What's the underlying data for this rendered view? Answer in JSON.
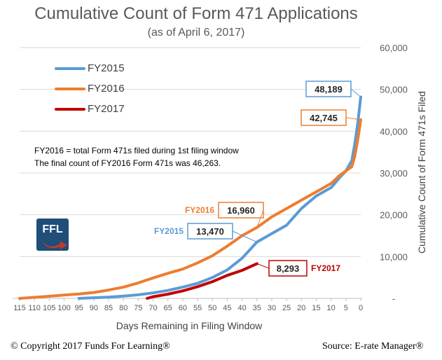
{
  "title": "Cumulative Count of Form 471 Applications",
  "subtitle": "(as of April 6, 2017)",
  "notes": [
    "FY2016 = total Form 471s filed during 1st filing window",
    "The final count of FY2016 Form 471s was 46,263."
  ],
  "logo_text": "FFL",
  "footer": {
    "copyright": "© Copyright 2017 Funds For Learning®",
    "source": "Source: E-rate Manager®"
  },
  "colors": {
    "FY2015": "#5b9bd5",
    "FY2016": "#ed7d31",
    "FY2017": "#c00000",
    "grid": "#d9d9d9",
    "axis_text": "#595959"
  },
  "chart_data": {
    "type": "line",
    "title": "Cumulative Count of Form 471 Applications",
    "subtitle": "(as of April 6, 2017)",
    "xlabel": "Days Remaining in Filing Window",
    "ylabel": "Cumulative Count of Form 471s Filed",
    "xlim": [
      115,
      0
    ],
    "ylim": [
      0,
      60000
    ],
    "x_ticks": [
      115,
      110,
      105,
      100,
      95,
      90,
      85,
      80,
      75,
      70,
      65,
      60,
      55,
      50,
      45,
      40,
      35,
      30,
      25,
      20,
      15,
      10,
      5,
      0
    ],
    "y_ticks": [
      0,
      10000,
      20000,
      30000,
      40000,
      50000,
      60000
    ],
    "y_tick_labels": [
      "-",
      "10,000",
      "20,000",
      "30,000",
      "40,000",
      "50,000",
      "60,000"
    ],
    "grid": true,
    "legend_position": "top-left",
    "series": [
      {
        "name": "FY2015",
        "points": [
          [
            95,
            0
          ],
          [
            90,
            150
          ],
          [
            85,
            300
          ],
          [
            80,
            550
          ],
          [
            75,
            850
          ],
          [
            70,
            1300
          ],
          [
            65,
            1900
          ],
          [
            60,
            2700
          ],
          [
            55,
            3600
          ],
          [
            50,
            5000
          ],
          [
            45,
            6800
          ],
          [
            40,
            9600
          ],
          [
            35,
            13470
          ],
          [
            30,
            15500
          ],
          [
            25,
            17500
          ],
          [
            20,
            21500
          ],
          [
            15,
            24500
          ],
          [
            10,
            26500
          ],
          [
            7,
            29000
          ],
          [
            5,
            30500
          ],
          [
            3,
            33000
          ],
          [
            2,
            37000
          ],
          [
            1,
            42000
          ],
          [
            0,
            48189
          ]
        ]
      },
      {
        "name": "FY2016",
        "points": [
          [
            115,
            0
          ],
          [
            110,
            250
          ],
          [
            105,
            500
          ],
          [
            100,
            800
          ],
          [
            95,
            1050
          ],
          [
            90,
            1400
          ],
          [
            85,
            2000
          ],
          [
            80,
            2700
          ],
          [
            75,
            3700
          ],
          [
            70,
            4900
          ],
          [
            65,
            6000
          ],
          [
            60,
            7000
          ],
          [
            55,
            8500
          ],
          [
            50,
            10200
          ],
          [
            45,
            12500
          ],
          [
            40,
            15000
          ],
          [
            35,
            16960
          ],
          [
            30,
            19500
          ],
          [
            25,
            21500
          ],
          [
            20,
            23500
          ],
          [
            15,
            25500
          ],
          [
            10,
            27500
          ],
          [
            7,
            29500
          ],
          [
            5,
            30500
          ],
          [
            3,
            31500
          ],
          [
            2,
            34000
          ],
          [
            1,
            38000
          ],
          [
            0,
            42745
          ]
        ]
      },
      {
        "name": "FY2017",
        "points": [
          [
            72,
            0
          ],
          [
            70,
            400
          ],
          [
            65,
            1000
          ],
          [
            60,
            1800
          ],
          [
            55,
            2800
          ],
          [
            50,
            4000
          ],
          [
            45,
            5500
          ],
          [
            40,
            6700
          ],
          [
            35,
            8293
          ]
        ]
      }
    ],
    "annotations": [
      {
        "text": "48,189",
        "series": "FY2015",
        "x": 0,
        "y": 48189
      },
      {
        "text": "42,745",
        "series": "FY2016",
        "x": 0,
        "y": 42745
      },
      {
        "text": "16,960",
        "series": "FY2016",
        "x": 35,
        "y": 16960,
        "label": "FY2016"
      },
      {
        "text": "13,470",
        "series": "FY2015",
        "x": 35,
        "y": 13470,
        "label": "FY2015"
      },
      {
        "text": "8,293",
        "series": "FY2017",
        "x": 35,
        "y": 8293,
        "label": "FY2017"
      }
    ]
  }
}
